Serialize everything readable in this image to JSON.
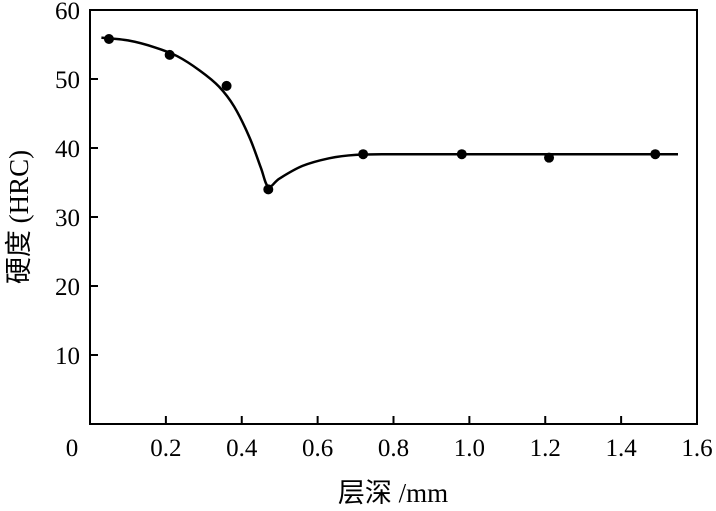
{
  "chart_data": {
    "type": "line",
    "title": "",
    "xlabel": "层深 /mm",
    "ylabel": "硬度 (HRC)",
    "xlim": [
      0,
      1.6
    ],
    "ylim": [
      0,
      60
    ],
    "grid": false,
    "legend": false,
    "x_ticks": [
      {
        "value": 0,
        "label": "0"
      },
      {
        "value": 0.2,
        "label": "0.2"
      },
      {
        "value": 0.4,
        "label": "0.4"
      },
      {
        "value": 0.6,
        "label": "0.6"
      },
      {
        "value": 0.8,
        "label": "0.8"
      },
      {
        "value": 1.0,
        "label": "1.0"
      },
      {
        "value": 1.2,
        "label": "1.2"
      },
      {
        "value": 1.4,
        "label": "1.4"
      },
      {
        "value": 1.6,
        "label": "1.6"
      }
    ],
    "y_ticks": [
      {
        "value": 10,
        "label": "10"
      },
      {
        "value": 20,
        "label": "20"
      },
      {
        "value": 30,
        "label": "30"
      },
      {
        "value": 40,
        "label": "40"
      },
      {
        "value": 50,
        "label": "50"
      },
      {
        "value": 60,
        "label": "60"
      }
    ],
    "series": [
      {
        "points": [
          {
            "x": 0.05,
            "y": 55.8
          },
          {
            "x": 0.21,
            "y": 53.5
          },
          {
            "x": 0.36,
            "y": 49.0
          },
          {
            "x": 0.47,
            "y": 34.0
          },
          {
            "x": 0.72,
            "y": 39.1
          },
          {
            "x": 0.98,
            "y": 39.1
          },
          {
            "x": 1.21,
            "y": 38.6
          },
          {
            "x": 1.49,
            "y": 39.1
          }
        ],
        "curve": [
          {
            "x": 0.03,
            "y": 56.0
          },
          {
            "x": 0.1,
            "y": 55.6
          },
          {
            "x": 0.17,
            "y": 54.6
          },
          {
            "x": 0.23,
            "y": 53.3
          },
          {
            "x": 0.29,
            "y": 51.2
          },
          {
            "x": 0.34,
            "y": 48.9
          },
          {
            "x": 0.38,
            "y": 46.0
          },
          {
            "x": 0.42,
            "y": 41.6
          },
          {
            "x": 0.45,
            "y": 37.2
          },
          {
            "x": 0.47,
            "y": 34.4
          },
          {
            "x": 0.5,
            "y": 35.6
          },
          {
            "x": 0.56,
            "y": 37.4
          },
          {
            "x": 0.63,
            "y": 38.5
          },
          {
            "x": 0.7,
            "y": 39.0
          },
          {
            "x": 0.8,
            "y": 39.1
          },
          {
            "x": 1.0,
            "y": 39.1
          },
          {
            "x": 1.3,
            "y": 39.1
          },
          {
            "x": 1.55,
            "y": 39.1
          }
        ]
      }
    ]
  }
}
